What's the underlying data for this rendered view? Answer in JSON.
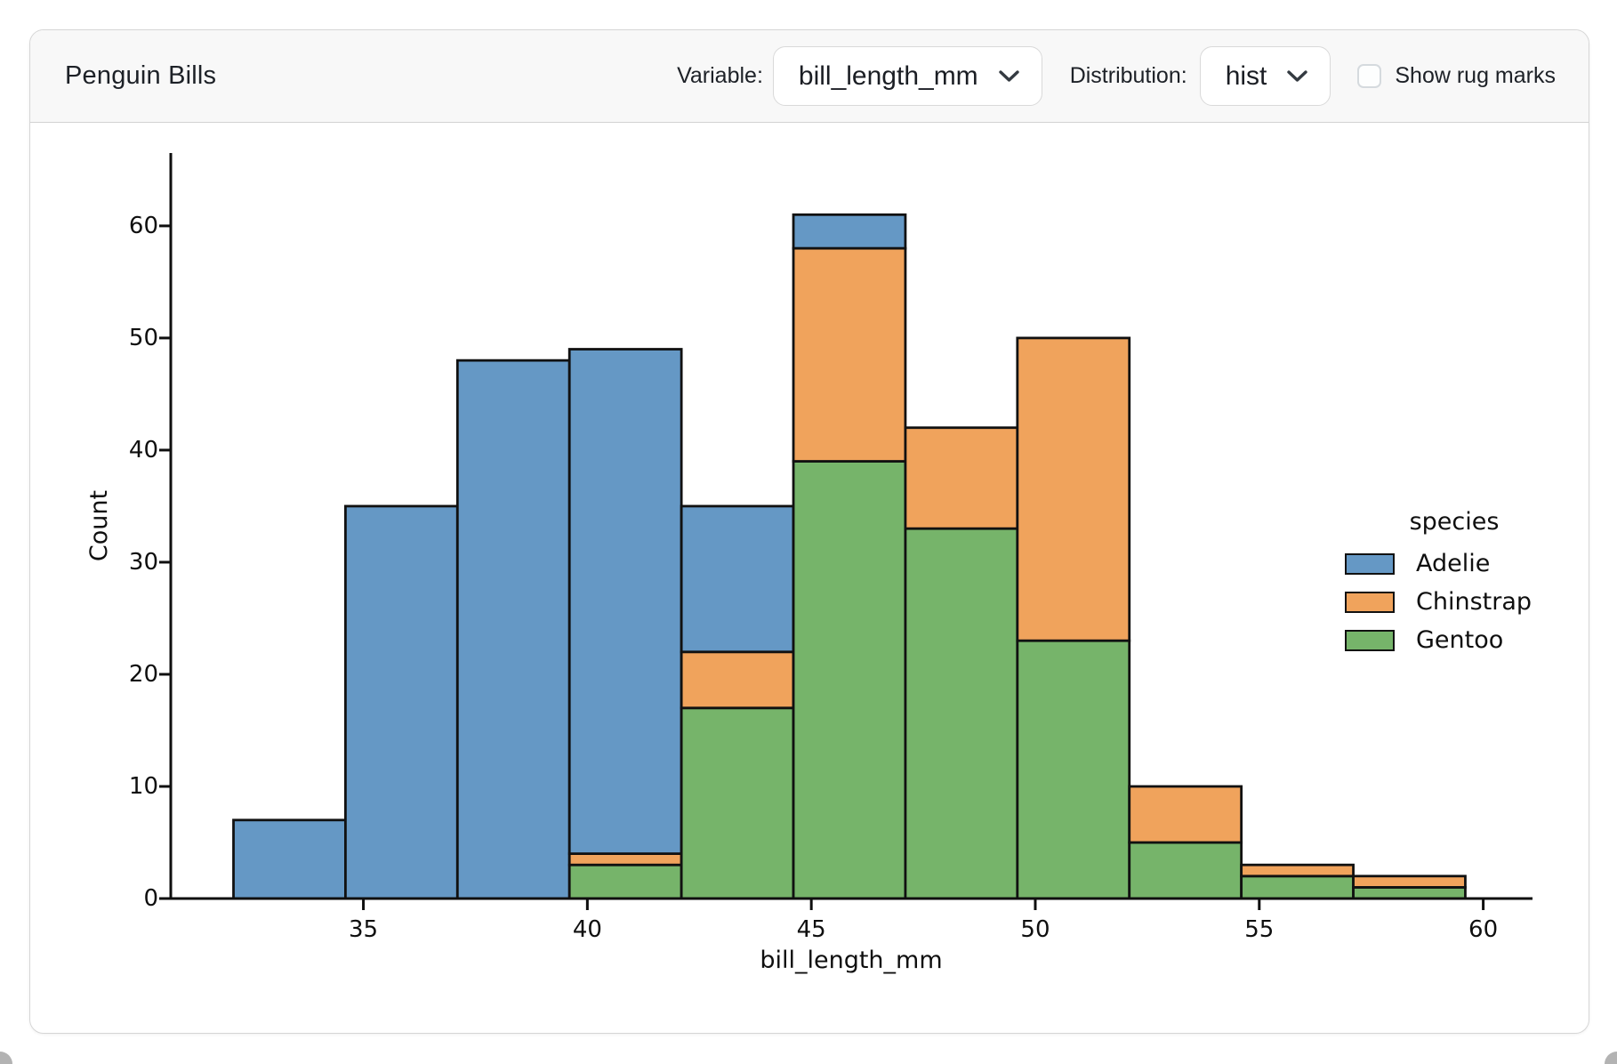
{
  "header": {
    "title": "Penguin Bills",
    "variable_label": "Variable:",
    "variable_value": "bill_length_mm",
    "distribution_label": "Distribution:",
    "distribution_value": "hist",
    "rug_label": "Show rug marks",
    "rug_checked": false
  },
  "colors": {
    "adelie": "#6598c5",
    "chinstrap": "#f0a35c",
    "gentoo": "#76b46a",
    "bar_edge": "#111111",
    "axis": "#0f0f0f",
    "header_bg": "#f8f8f8",
    "card_border": "#d6d6d6"
  },
  "chart_data": {
    "type": "bar",
    "subtype": "stacked-histogram",
    "title": "",
    "xlabel": "bill_length_mm",
    "ylabel": "Count",
    "legend_title": "species",
    "legend_position": "right",
    "grid": false,
    "bin_edges": [
      32.1,
      34.6,
      37.1,
      39.6,
      42.1,
      44.6,
      47.1,
      49.6,
      52.1,
      54.6,
      57.1,
      59.6
    ],
    "series": [
      {
        "name": "Adelie",
        "color_key": "adelie",
        "values": [
          7,
          35,
          48,
          45,
          13,
          3,
          0,
          0,
          0,
          0,
          0
        ]
      },
      {
        "name": "Chinstrap",
        "color_key": "chinstrap",
        "values": [
          0,
          0,
          0,
          1,
          5,
          19,
          9,
          27,
          5,
          1,
          1
        ]
      },
      {
        "name": "Gentoo",
        "color_key": "gentoo",
        "values": [
          0,
          0,
          0,
          3,
          17,
          39,
          33,
          23,
          5,
          2,
          1
        ]
      }
    ],
    "stack_order_bottom_to_top": [
      "Gentoo",
      "Chinstrap",
      "Adelie"
    ],
    "bin_totals": [
      7,
      35,
      48,
      49,
      35,
      61,
      42,
      50,
      10,
      3,
      2
    ],
    "xticks": [
      35,
      40,
      45,
      50,
      55,
      60
    ],
    "yticks": [
      0,
      10,
      20,
      30,
      40,
      50,
      60
    ],
    "xlim": [
      30.7,
      61.1
    ],
    "ylim": [
      0,
      66.5
    ]
  }
}
